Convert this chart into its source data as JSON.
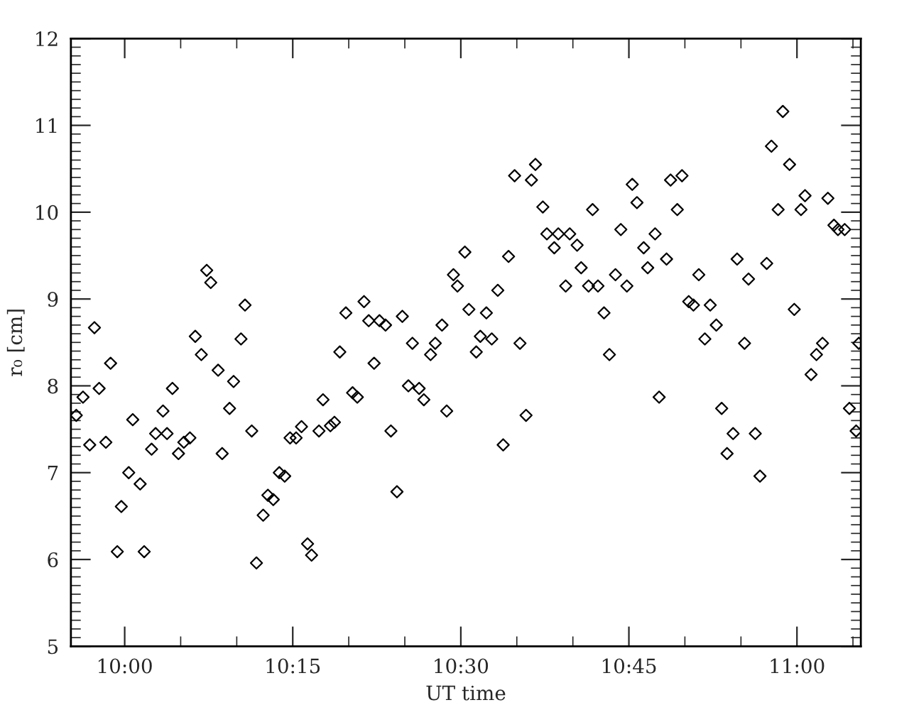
{
  "chart_data": {
    "type": "scatter",
    "xlabel": "UT time",
    "ylabel": "r₀ [cm]",
    "xlim": [
      9.92,
      11.095
    ],
    "ylim": [
      5,
      12
    ],
    "xticks": [
      {
        "value": 10,
        "label": "10:00"
      },
      {
        "value": 10.0833,
        "label": null
      },
      {
        "value": 10.1667,
        "label": null
      },
      {
        "value": 10.25,
        "label": "10:15"
      },
      {
        "value": 10.3333,
        "label": null
      },
      {
        "value": 10.4167,
        "label": null
      },
      {
        "value": 10.5,
        "label": "10:30"
      },
      {
        "value": 10.5833,
        "label": null
      },
      {
        "value": 10.6667,
        "label": null
      },
      {
        "value": 10.75,
        "label": "10:45"
      },
      {
        "value": 10.8333,
        "label": null
      },
      {
        "value": 10.9167,
        "label": null
      },
      {
        "value": 11,
        "label": "11:00"
      },
      {
        "value": 11.0833,
        "label": null
      }
    ],
    "yticks": [
      5,
      6,
      7,
      8,
      9,
      10,
      11,
      12
    ],
    "marker": "diamond",
    "grid": false,
    "series": [
      {
        "color": "#000000",
        "x": [
          9.928,
          9.938,
          9.948,
          9.955,
          9.962,
          9.972,
          9.979,
          9.989,
          9.995,
          10.006,
          10.012,
          10.023,
          10.029,
          10.04,
          10.046,
          10.057,
          10.063,
          10.071,
          10.08,
          10.088,
          10.097,
          10.105,
          10.114,
          10.122,
          10.128,
          10.139,
          10.145,
          10.156,
          10.162,
          10.173,
          10.179,
          10.189,
          10.196,
          10.206,
          10.213,
          10.221,
          10.23,
          10.238,
          10.246,
          10.255,
          10.263,
          10.272,
          10.278,
          10.289,
          10.295,
          10.306,
          10.312,
          10.32,
          10.329,
          10.339,
          10.346,
          10.356,
          10.363,
          10.371,
          10.379,
          10.388,
          10.396,
          10.405,
          10.413,
          10.422,
          10.428,
          10.438,
          10.445,
          10.455,
          10.462,
          10.472,
          10.479,
          10.489,
          10.495,
          10.506,
          10.512,
          10.523,
          10.529,
          10.538,
          10.546,
          10.555,
          10.563,
          10.571,
          10.58,
          10.588,
          10.597,
          10.605,
          10.611,
          10.622,
          10.628,
          10.639,
          10.645,
          10.656,
          10.662,
          10.673,
          10.679,
          10.69,
          10.696,
          10.704,
          10.713,
          10.721,
          10.73,
          10.738,
          10.747,
          10.755,
          10.762,
          10.772,
          10.778,
          10.789,
          10.795,
          10.806,
          10.812,
          10.822,
          10.829,
          10.839,
          10.846,
          10.854,
          10.863,
          10.871,
          10.88,
          10.888,
          10.896,
          10.905,
          10.911,
          10.922,
          10.928,
          10.938,
          10.945,
          10.955,
          10.962,
          10.972,
          10.979,
          10.989,
          10.996,
          11.006,
          11.012,
          11.021,
          11.029,
          11.038,
          11.046,
          11.055,
          11.061,
          11.071,
          11.078,
          11.088,
          11.092
        ],
        "values": [
          7.66,
          7.87,
          7.32,
          8.67,
          7.97,
          7.35,
          8.26,
          6.09,
          6.61,
          7.0,
          7.61,
          6.87,
          6.09,
          7.27,
          7.45,
          7.71,
          7.45,
          7.97,
          7.22,
          7.35,
          7.4,
          8.57,
          8.36,
          9.33,
          9.19,
          8.18,
          7.22,
          7.74,
          8.05,
          8.54,
          8.93,
          7.48,
          5.96,
          6.51,
          6.74,
          6.69,
          7.0,
          6.96,
          7.4,
          7.4,
          7.53,
          6.18,
          6.05,
          7.48,
          7.84,
          7.54,
          7.58,
          8.39,
          8.84,
          7.92,
          7.87,
          8.97,
          8.75,
          8.26,
          8.75,
          8.7,
          7.48,
          6.78,
          8.8,
          8.0,
          8.49,
          7.97,
          7.84,
          8.36,
          8.49,
          8.7,
          7.71,
          9.28,
          9.15,
          9.54,
          8.88,
          8.39,
          8.57,
          8.84,
          8.54,
          9.1,
          7.32,
          9.49,
          10.42,
          8.49,
          7.66,
          10.37,
          10.55,
          10.06,
          9.75,
          9.59,
          9.75,
          9.15,
          9.75,
          9.62,
          9.36,
          9.15,
          10.03,
          9.15,
          8.84,
          8.36,
          9.28,
          9.8,
          9.15,
          10.32,
          10.11,
          9.59,
          9.36,
          9.75,
          7.87,
          9.46,
          10.37,
          10.03,
          10.42,
          8.97,
          8.93,
          9.28,
          8.54,
          8.93,
          8.7,
          7.74,
          7.22,
          7.45,
          9.46,
          8.49,
          9.23,
          7.45,
          6.96,
          9.41,
          10.76,
          10.03,
          11.16,
          10.55,
          8.88,
          10.03,
          10.19,
          8.13,
          8.36,
          8.49,
          10.16,
          9.85,
          9.8,
          9.8,
          7.74,
          7.48,
          8.49
        ]
      }
    ]
  }
}
